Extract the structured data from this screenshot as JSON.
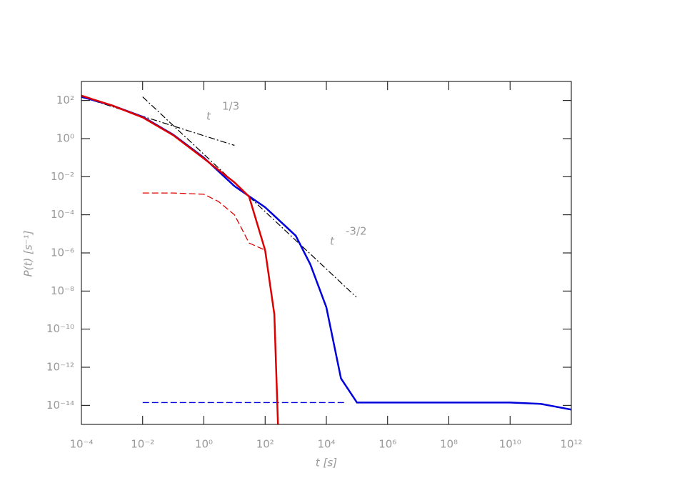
{
  "chart_data": {
    "type": "line",
    "xlabel": "t [s]",
    "ylabel": "P(t) [s⁻¹]",
    "xlog": true,
    "ylog": true,
    "xlim": [
      0.0001,
      1000000000000
    ],
    "ylim": [
      1e-15,
      1000
    ],
    "xticks": [
      {
        "value": 0.0001,
        "label": "10⁻⁴"
      },
      {
        "value": 0.01,
        "label": "10⁻²"
      },
      {
        "value": 1,
        "label": "10⁰"
      },
      {
        "value": 100,
        "label": "10²"
      },
      {
        "value": 10000,
        "label": "10⁴"
      },
      {
        "value": 1000000,
        "label": "10⁶"
      },
      {
        "value": 100000000,
        "label": "10⁸"
      },
      {
        "value": 10000000000,
        "label": "10¹⁰"
      },
      {
        "value": 1000000000000,
        "label": "10¹²"
      }
    ],
    "yticks": [
      {
        "value": 100,
        "label": "10²"
      },
      {
        "value": 1,
        "label": "10⁰"
      },
      {
        "value": 0.01,
        "label": "10⁻²"
      },
      {
        "value": 0.0001,
        "label": "10⁻⁴"
      },
      {
        "value": 1e-06,
        "label": "10⁻⁶"
      },
      {
        "value": 1e-08,
        "label": "10⁻⁸"
      },
      {
        "value": 1e-10,
        "label": "10⁻¹⁰"
      },
      {
        "value": 1e-12,
        "label": "10⁻¹²"
      },
      {
        "value": 1e-14,
        "label": "10⁻¹⁴"
      }
    ],
    "annotations": [
      {
        "base": "t",
        "sup": "1/3"
      },
      {
        "base": "t",
        "sup": "-3/2"
      }
    ],
    "series": [
      {
        "color": "#0000dd",
        "dash": "dashed",
        "width": 1.3,
        "x": [
          0.01,
          40000
        ],
        "values": [
          1.4e-14,
          1.4e-14
        ]
      },
      {
        "color": "#dd0000",
        "dash": "dashed",
        "width": 1.3,
        "x": [
          0.01,
          0.1,
          1,
          3,
          10,
          30,
          100
        ],
        "values": [
          0.0014,
          0.0014,
          0.0012,
          0.0005,
          0.0001,
          3.3e-06,
          1.4e-06
        ]
      },
      {
        "color": "#000000",
        "dash": "dashdot",
        "width": 1.2,
        "x": [
          0.0001,
          10
        ],
        "values": [
          155,
          0.44
        ]
      },
      {
        "color": "#000000",
        "dash": "dashdot",
        "width": 1.2,
        "x": [
          0.01,
          95500
        ],
        "values": [
          155,
          4.8e-09
        ]
      },
      {
        "color": "#0000dd",
        "dash": "solid",
        "width": 2.5,
        "x": [
          0.0001,
          0.001,
          0.01,
          0.1,
          1,
          10,
          100,
          1000,
          3000,
          10000,
          30000,
          100000,
          1000000,
          100000000,
          10000000000,
          100000000000,
          1000000000000
        ],
        "values": [
          155,
          55,
          14,
          1.6,
          0.1,
          0.0032,
          0.00025,
          8e-06,
          2.5e-07,
          1.4e-09,
          2.6e-13,
          1.4e-14,
          1.4e-14,
          1.4e-14,
          1.4e-14,
          1.2e-14,
          6e-15
        ]
      },
      {
        "color": "#dd0000",
        "dash": "solid",
        "width": 2.5,
        "x": [
          0.0001,
          0.001,
          0.01,
          0.1,
          1,
          10,
          30,
          100,
          200,
          263
        ],
        "values": [
          180,
          55,
          13,
          1.5,
          0.09,
          0.005,
          0.0009,
          1.4e-06,
          6e-10,
          1e-15
        ]
      }
    ]
  }
}
